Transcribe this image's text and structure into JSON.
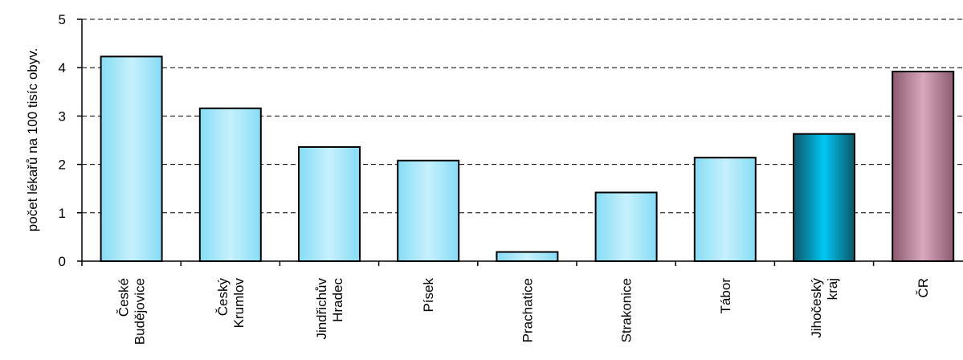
{
  "chart_data": {
    "type": "bar",
    "categories": [
      [
        "České",
        "Budějovice"
      ],
      [
        "Český",
        "Krumlov"
      ],
      [
        "Jindřichův",
        "Hradec"
      ],
      [
        "Písek"
      ],
      [
        "Prachatice"
      ],
      [
        "Strakonice"
      ],
      [
        "Tábor"
      ],
      [
        "Jihočeský",
        "kraj"
      ],
      [
        "ČR"
      ]
    ],
    "values": [
      4.23,
      3.16,
      2.36,
      2.08,
      0.19,
      1.42,
      2.14,
      2.63,
      3.92
    ],
    "ylabel": "počet lékařů na 100 tisíc obyv.",
    "ylim": [
      0,
      5
    ],
    "yticks": [
      "0",
      "1",
      "2",
      "3",
      "4",
      "5"
    ],
    "grid": "horizontal-dashed",
    "bar_colors": {
      "district": [
        "#86dcf6",
        "#c6f0fc",
        "#86dcf6"
      ],
      "region": [
        "#0d5566",
        "#00c8f4",
        "#0d5566"
      ],
      "country": [
        "#8c5a70",
        "#d8a8bc",
        "#8c5a70"
      ]
    },
    "bar_kinds": [
      "district",
      "district",
      "district",
      "district",
      "district",
      "district",
      "district",
      "region",
      "country"
    ]
  }
}
